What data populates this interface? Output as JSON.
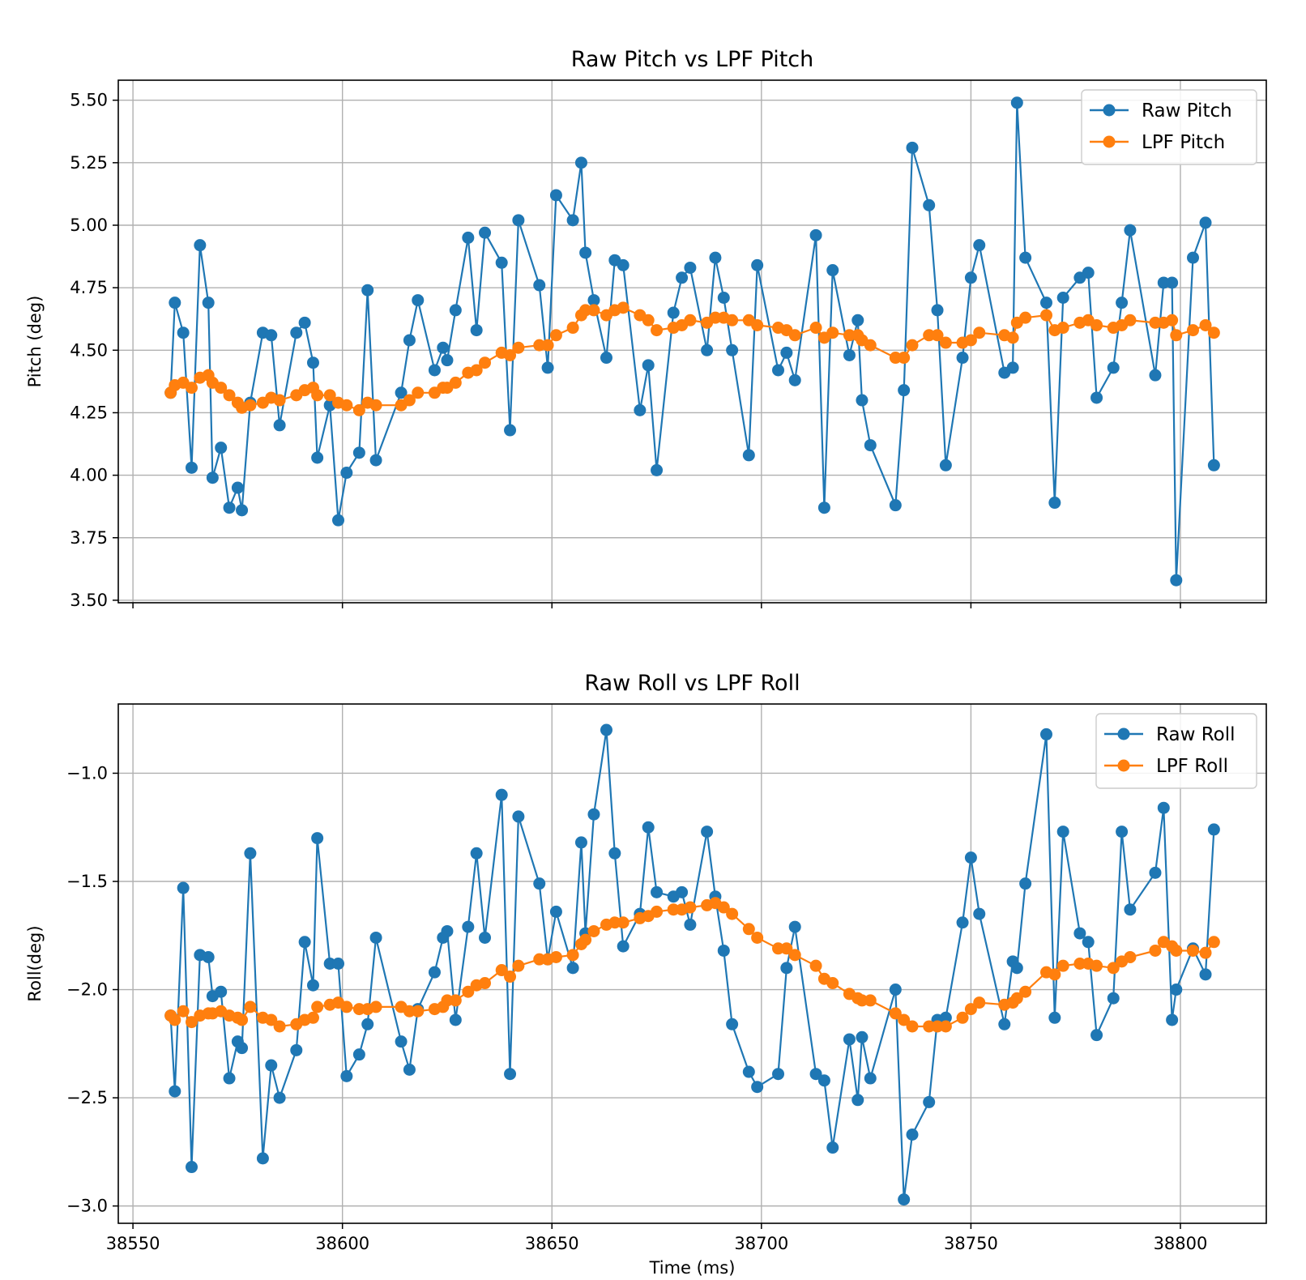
{
  "colors": {
    "raw": "#1f77b4",
    "lpf": "#ff7f0e",
    "grid": "#b0b0b0"
  },
  "chart_data": [
    {
      "type": "line",
      "title": "Raw Pitch vs LPF Pitch",
      "xlabel": "",
      "ylabel": "Pitch (deg)",
      "xlim": [
        38546.5,
        38820.5
      ],
      "ylim": [
        3.49,
        5.58
      ],
      "xticks": [
        38550,
        38600,
        38650,
        38700,
        38750,
        38800
      ],
      "xtick_labels": [
        "",
        "",
        "",
        "",
        "",
        ""
      ],
      "yticks": [
        3.5,
        3.75,
        4.0,
        4.25,
        4.5,
        4.75,
        5.0,
        5.25,
        5.5
      ],
      "ytick_labels": [
        "3.50",
        "3.75",
        "4.00",
        "4.25",
        "4.50",
        "4.75",
        "5.00",
        "5.25",
        "5.50"
      ],
      "grid": true,
      "legend": "top-right",
      "series": [
        {
          "name": "Raw Pitch",
          "color": "raw",
          "x": [
            38559,
            38560,
            38562,
            38564,
            38566,
            38568,
            38569,
            38571,
            38573,
            38575,
            38576,
            38578,
            38581,
            38583,
            38585,
            38589,
            38591,
            38593,
            38594,
            38597,
            38599,
            38601,
            38604,
            38606,
            38608,
            38614,
            38616,
            38618,
            38622,
            38624,
            38625,
            38627,
            38630,
            38632,
            38634,
            38638,
            38640,
            38642,
            38647,
            38649,
            38651,
            38655,
            38657,
            38658,
            38660,
            38663,
            38665,
            38667,
            38671,
            38673,
            38675,
            38679,
            38681,
            38683,
            38687,
            38689,
            38691,
            38693,
            38697,
            38699,
            38704,
            38706,
            38708,
            38713,
            38715,
            38717,
            38721,
            38723,
            38724,
            38726,
            38732,
            38734,
            38736,
            38740,
            38742,
            38744,
            38748,
            38750,
            38752,
            38758,
            38760,
            38761,
            38763,
            38768,
            38770,
            38772,
            38776,
            38778,
            38780,
            38784,
            38786,
            38788,
            38794,
            38796,
            38798,
            38799,
            38803,
            38806,
            38808
          ],
          "values": [
            4.33,
            4.69,
            4.57,
            4.03,
            4.92,
            4.69,
            3.99,
            4.11,
            3.87,
            3.95,
            3.86,
            4.29,
            4.57,
            4.56,
            4.2,
            4.57,
            4.61,
            4.45,
            4.07,
            4.28,
            3.82,
            4.01,
            4.09,
            4.74,
            4.06,
            4.33,
            4.54,
            4.7,
            4.42,
            4.51,
            4.46,
            4.66,
            4.95,
            4.58,
            4.97,
            4.85,
            4.18,
            5.02,
            4.76,
            4.43,
            5.12,
            5.02,
            5.25,
            4.89,
            4.7,
            4.47,
            4.86,
            4.84,
            4.26,
            4.44,
            4.02,
            4.65,
            4.79,
            4.83,
            4.5,
            4.87,
            4.71,
            4.5,
            4.08,
            4.84,
            4.42,
            4.49,
            4.38,
            4.96,
            3.87,
            4.82,
            4.48,
            4.62,
            4.3,
            4.12,
            3.88,
            4.34,
            5.31,
            5.08,
            4.66,
            4.04,
            4.47,
            4.79,
            4.92,
            4.41,
            4.43,
            5.49,
            4.87,
            4.69,
            3.89,
            4.71,
            4.79,
            4.81,
            4.31,
            4.43,
            4.69,
            4.98,
            4.4,
            4.77,
            4.77,
            3.58,
            4.87,
            5.01,
            4.04
          ]
        },
        {
          "name": "LPF Pitch",
          "color": "lpf",
          "x": [
            38559,
            38560,
            38562,
            38564,
            38566,
            38568,
            38569,
            38571,
            38573,
            38575,
            38576,
            38578,
            38581,
            38583,
            38585,
            38589,
            38591,
            38593,
            38594,
            38597,
            38599,
            38601,
            38604,
            38606,
            38608,
            38614,
            38616,
            38618,
            38622,
            38624,
            38625,
            38627,
            38630,
            38632,
            38634,
            38638,
            38640,
            38642,
            38647,
            38649,
            38651,
            38655,
            38657,
            38658,
            38660,
            38663,
            38665,
            38667,
            38671,
            38673,
            38675,
            38679,
            38681,
            38683,
            38687,
            38689,
            38691,
            38693,
            38697,
            38699,
            38704,
            38706,
            38708,
            38713,
            38715,
            38717,
            38721,
            38723,
            38724,
            38726,
            38732,
            38734,
            38736,
            38740,
            38742,
            38744,
            38748,
            38750,
            38752,
            38758,
            38760,
            38761,
            38763,
            38768,
            38770,
            38772,
            38776,
            38778,
            38780,
            38784,
            38786,
            38788,
            38794,
            38796,
            38798,
            38799,
            38803,
            38806,
            38808
          ],
          "values": [
            4.33,
            4.36,
            4.37,
            4.35,
            4.39,
            4.4,
            4.37,
            4.35,
            4.32,
            4.29,
            4.27,
            4.28,
            4.29,
            4.31,
            4.3,
            4.32,
            4.34,
            4.35,
            4.32,
            4.32,
            4.29,
            4.28,
            4.26,
            4.29,
            4.28,
            4.28,
            4.3,
            4.33,
            4.33,
            4.35,
            4.35,
            4.37,
            4.41,
            4.42,
            4.45,
            4.49,
            4.48,
            4.51,
            4.52,
            4.52,
            4.56,
            4.59,
            4.64,
            4.66,
            4.66,
            4.64,
            4.66,
            4.67,
            4.64,
            4.62,
            4.58,
            4.59,
            4.6,
            4.62,
            4.61,
            4.63,
            4.63,
            4.62,
            4.62,
            4.6,
            4.59,
            4.58,
            4.56,
            4.59,
            4.55,
            4.57,
            4.56,
            4.56,
            4.54,
            4.52,
            4.47,
            4.47,
            4.52,
            4.56,
            4.56,
            4.53,
            4.53,
            4.54,
            4.57,
            4.56,
            4.55,
            4.61,
            4.63,
            4.64,
            4.58,
            4.59,
            4.61,
            4.62,
            4.6,
            4.59,
            4.6,
            4.62,
            4.61,
            4.61,
            4.62,
            4.56,
            4.58,
            4.6,
            4.57
          ]
        }
      ]
    },
    {
      "type": "line",
      "title": "Raw Roll vs LPF Roll",
      "xlabel": "Time (ms)",
      "ylabel": "Roll(deg)",
      "xlim": [
        38546.5,
        38820.5
      ],
      "ylim": [
        -3.08,
        -0.68
      ],
      "xticks": [
        38550,
        38600,
        38650,
        38700,
        38750,
        38800
      ],
      "xtick_labels": [
        "38550",
        "38600",
        "38650",
        "38700",
        "38750",
        "38800"
      ],
      "yticks": [
        -3.0,
        -2.5,
        -2.0,
        -1.5,
        -1.0
      ],
      "ytick_labels": [
        "−3.0",
        "−2.5",
        "−2.0",
        "−1.5",
        "−1.0"
      ],
      "grid": true,
      "legend": "top-right",
      "series": [
        {
          "name": "Raw Roll",
          "color": "raw",
          "x": [
            38559,
            38560,
            38562,
            38564,
            38566,
            38568,
            38569,
            38571,
            38573,
            38575,
            38576,
            38578,
            38581,
            38583,
            38585,
            38589,
            38591,
            38593,
            38594,
            38597,
            38599,
            38601,
            38604,
            38606,
            38608,
            38614,
            38616,
            38618,
            38622,
            38624,
            38625,
            38627,
            38630,
            38632,
            38634,
            38638,
            38640,
            38642,
            38647,
            38649,
            38651,
            38655,
            38657,
            38658,
            38660,
            38663,
            38665,
            38667,
            38671,
            38673,
            38675,
            38679,
            38681,
            38683,
            38687,
            38689,
            38691,
            38693,
            38697,
            38699,
            38704,
            38706,
            38708,
            38713,
            38715,
            38717,
            38721,
            38723,
            38724,
            38726,
            38732,
            38734,
            38736,
            38740,
            38742,
            38744,
            38748,
            38750,
            38752,
            38758,
            38760,
            38761,
            38763,
            38768,
            38770,
            38772,
            38776,
            38778,
            38780,
            38784,
            38786,
            38788,
            38794,
            38796,
            38798,
            38799,
            38803,
            38806,
            38808
          ],
          "values": [
            -2.12,
            -2.47,
            -1.53,
            -2.82,
            -1.84,
            -1.85,
            -2.03,
            -2.01,
            -2.41,
            -2.24,
            -2.27,
            -1.37,
            -2.78,
            -2.35,
            -2.5,
            -2.28,
            -1.78,
            -1.98,
            -1.3,
            -1.88,
            -1.88,
            -2.4,
            -2.3,
            -2.16,
            -1.76,
            -2.24,
            -2.37,
            -2.09,
            -1.92,
            -1.76,
            -1.73,
            -2.14,
            -1.71,
            -1.37,
            -1.76,
            -1.1,
            -2.39,
            -1.2,
            -1.51,
            -1.86,
            -1.64,
            -1.9,
            -1.32,
            -1.74,
            -1.19,
            -0.8,
            -1.37,
            -1.8,
            -1.65,
            -1.25,
            -1.55,
            -1.57,
            -1.55,
            -1.7,
            -1.27,
            -1.57,
            -1.82,
            -2.16,
            -2.38,
            -2.45,
            -2.39,
            -1.9,
            -1.71,
            -2.39,
            -2.42,
            -2.73,
            -2.23,
            -2.51,
            -2.22,
            -2.41,
            -2.0,
            -2.97,
            -2.67,
            -2.52,
            -2.14,
            -2.13,
            -1.69,
            -1.39,
            -1.65,
            -2.16,
            -1.87,
            -1.9,
            -1.51,
            -0.82,
            -2.13,
            -1.27,
            -1.74,
            -1.78,
            -2.21,
            -2.04,
            -1.27,
            -1.63,
            -1.46,
            -1.16,
            -2.14,
            -2.0,
            -1.81,
            -1.93,
            -1.26
          ]
        },
        {
          "name": "LPF Roll",
          "color": "lpf",
          "x": [
            38559,
            38560,
            38562,
            38564,
            38566,
            38568,
            38569,
            38571,
            38573,
            38575,
            38576,
            38578,
            38581,
            38583,
            38585,
            38589,
            38591,
            38593,
            38594,
            38597,
            38599,
            38601,
            38604,
            38606,
            38608,
            38614,
            38616,
            38618,
            38622,
            38624,
            38625,
            38627,
            38630,
            38632,
            38634,
            38638,
            38640,
            38642,
            38647,
            38649,
            38651,
            38655,
            38657,
            38658,
            38660,
            38663,
            38665,
            38667,
            38671,
            38673,
            38675,
            38679,
            38681,
            38683,
            38687,
            38689,
            38691,
            38693,
            38697,
            38699,
            38704,
            38706,
            38708,
            38713,
            38715,
            38717,
            38721,
            38723,
            38724,
            38726,
            38732,
            38734,
            38736,
            38740,
            38742,
            38744,
            38748,
            38750,
            38752,
            38758,
            38760,
            38761,
            38763,
            38768,
            38770,
            38772,
            38776,
            38778,
            38780,
            38784,
            38786,
            38788,
            38794,
            38796,
            38798,
            38799,
            38803,
            38806,
            38808
          ],
          "values": [
            -2.12,
            -2.14,
            -2.1,
            -2.15,
            -2.12,
            -2.11,
            -2.11,
            -2.1,
            -2.12,
            -2.13,
            -2.14,
            -2.08,
            -2.13,
            -2.14,
            -2.17,
            -2.16,
            -2.14,
            -2.13,
            -2.08,
            -2.07,
            -2.06,
            -2.08,
            -2.09,
            -2.09,
            -2.08,
            -2.08,
            -2.1,
            -2.1,
            -2.09,
            -2.08,
            -2.05,
            -2.05,
            -2.01,
            -1.98,
            -1.97,
            -1.91,
            -1.94,
            -1.89,
            -1.86,
            -1.86,
            -1.85,
            -1.84,
            -1.79,
            -1.77,
            -1.73,
            -1.7,
            -1.69,
            -1.69,
            -1.67,
            -1.66,
            -1.64,
            -1.63,
            -1.63,
            -1.62,
            -1.61,
            -1.6,
            -1.62,
            -1.65,
            -1.72,
            -1.76,
            -1.81,
            -1.81,
            -1.84,
            -1.89,
            -1.95,
            -1.97,
            -2.02,
            -2.04,
            -2.05,
            -2.05,
            -2.11,
            -2.14,
            -2.17,
            -2.17,
            -2.17,
            -2.17,
            -2.13,
            -2.09,
            -2.06,
            -2.07,
            -2.06,
            -2.04,
            -2.01,
            -1.92,
            -1.93,
            -1.89,
            -1.88,
            -1.88,
            -1.89,
            -1.9,
            -1.87,
            -1.85,
            -1.82,
            -1.78,
            -1.8,
            -1.82,
            -1.82,
            -1.83,
            -1.78
          ]
        }
      ]
    }
  ]
}
